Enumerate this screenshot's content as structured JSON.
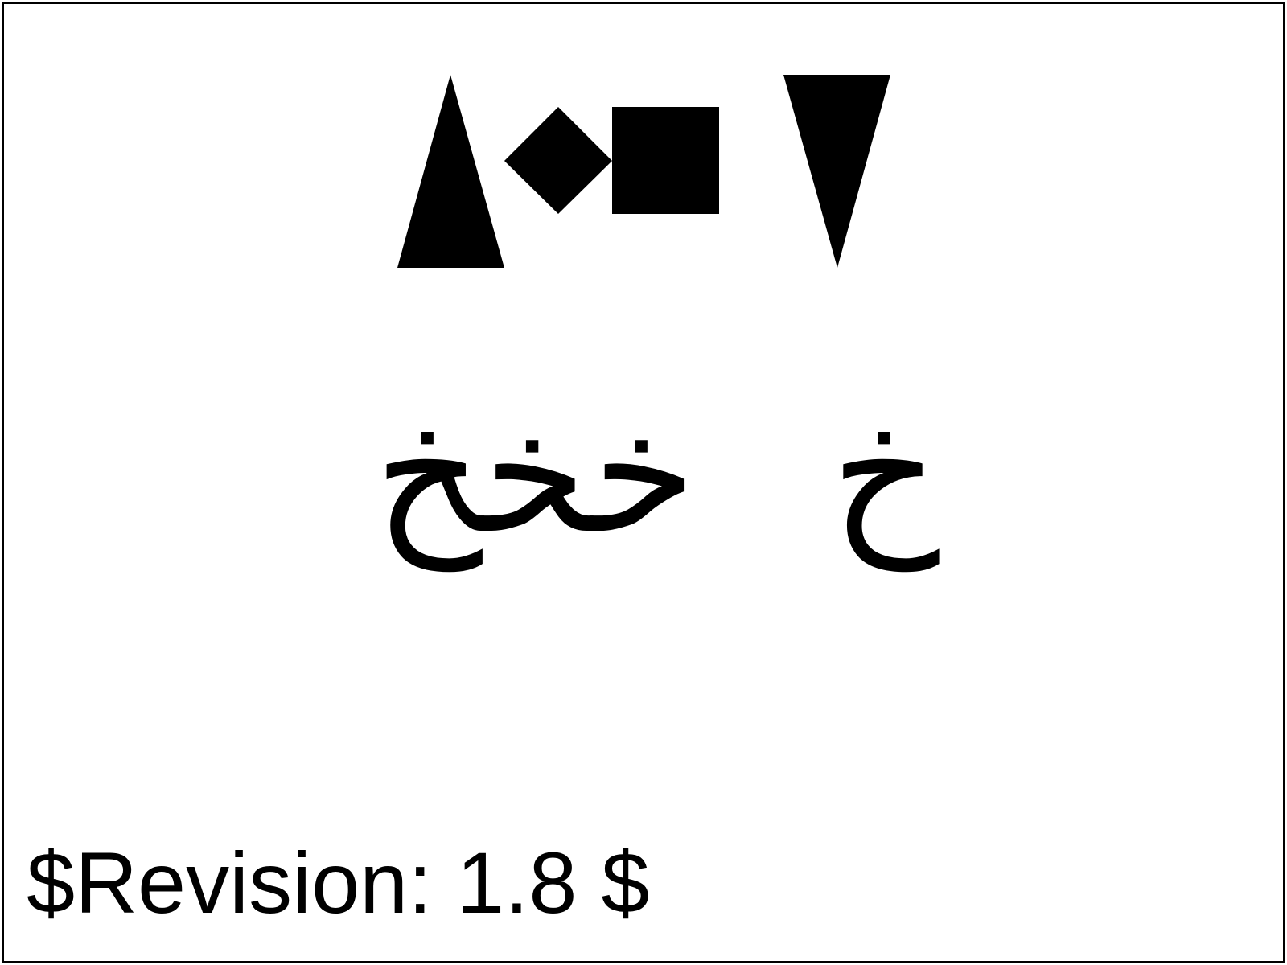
{
  "shapes": {
    "triangle_up": "triangle-up",
    "diamond": "diamond",
    "square": "square",
    "triangle_down": "triangle-down",
    "fill_color": "#000000"
  },
  "arabic": {
    "joined": "خخخ",
    "isolated": "خ"
  },
  "footer": {
    "revision": "$Revision: 1.8 $"
  },
  "colors": {
    "background": "#ffffff",
    "border": "#000000",
    "ink": "#000000"
  }
}
